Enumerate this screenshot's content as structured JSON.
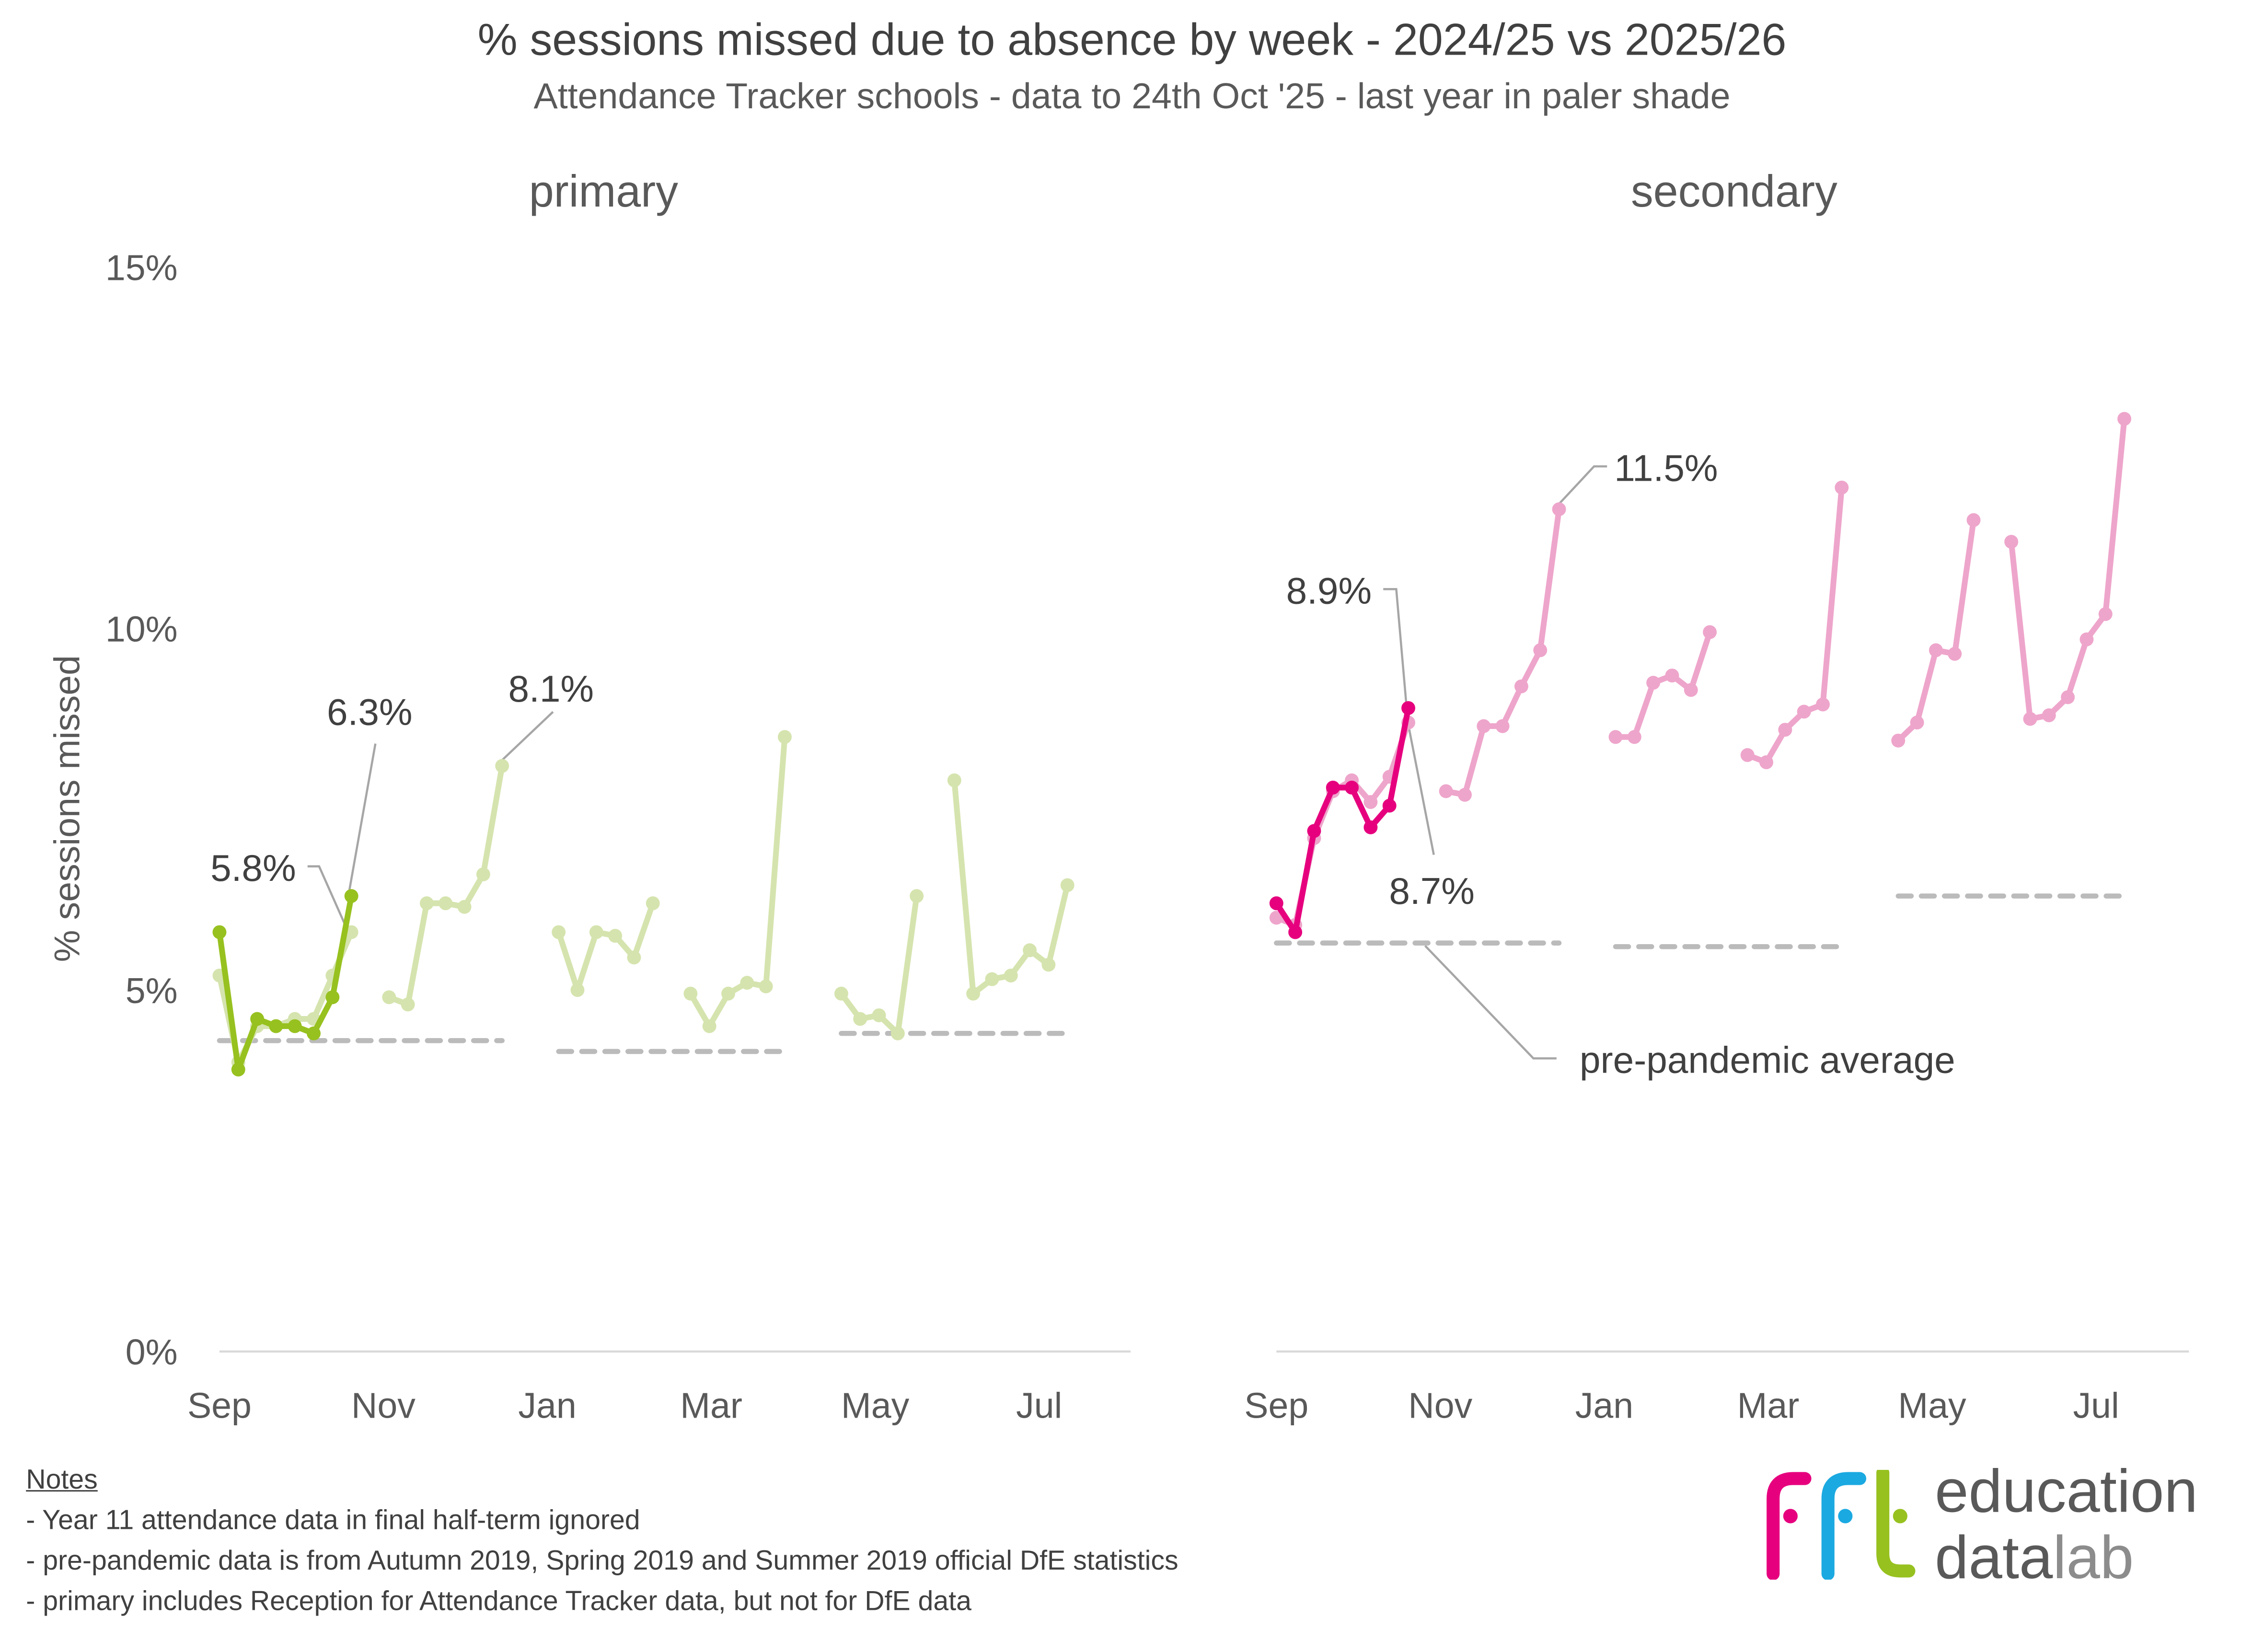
{
  "title": "% sessions missed due to absence by week - 2024/25 vs 2025/26",
  "subtitle": "Attendance Tracker schools - data to 24th Oct '25 - last year in paler shade",
  "notes": {
    "heading": "Notes",
    "items": [
      "-  Year 11 attendance data in final half-term ignored",
      "-  pre-pandemic data is from Autumn 2019, Spring 2019 and Summer 2019 official DfE statistics",
      "-  primary includes Reception for Attendance Tracker data, but not for DfE data"
    ]
  },
  "logo": {
    "mark": "ffl",
    "line1": "education",
    "line2a": "data",
    "line2b": "lab"
  },
  "chart_data": [
    {
      "type": "line",
      "title": "primary",
      "ylabel": "% sessions missed",
      "ylim": [
        0,
        15
      ],
      "yticks": [
        0,
        5,
        10,
        15
      ],
      "ytick_labels": [
        "0%",
        "5%",
        "10%",
        "15%"
      ],
      "x_unit": "weeks since start of September",
      "xtick_positions": [
        0,
        8.7,
        17.4,
        26.1,
        34.8,
        43.5
      ],
      "xtick_labels": [
        "Sep",
        "Nov",
        "Jan",
        "Mar",
        "May",
        "Jul"
      ],
      "colors": {
        "current": "#97C11F",
        "last": "#D5E4AE",
        "baseline": "#BBBBBB"
      },
      "series": [
        {
          "name": "2025/26",
          "segments": [
            {
              "x": [
                0,
                1,
                2,
                3,
                4,
                5,
                6,
                7
              ],
              "y": [
                5.8,
                3.9,
                4.6,
                4.5,
                4.5,
                4.4,
                4.9,
                6.3
              ]
            }
          ]
        },
        {
          "name": "2024/25",
          "segments": [
            {
              "x": [
                0,
                1,
                2,
                3,
                4,
                5,
                6,
                7
              ],
              "y": [
                5.2,
                4.0,
                4.5,
                4.5,
                4.6,
                4.6,
                5.2,
                5.8
              ]
            },
            {
              "x": [
                9,
                10,
                11,
                12,
                13,
                14,
                15
              ],
              "y": [
                4.9,
                4.8,
                6.2,
                6.2,
                6.15,
                6.6,
                8.1
              ]
            },
            {
              "x": [
                18,
                19,
                20,
                21,
                22,
                23
              ],
              "y": [
                5.8,
                5.0,
                5.8,
                5.75,
                5.45,
                6.2
              ]
            },
            {
              "x": [
                25,
                26,
                27,
                28,
                29,
                30
              ],
              "y": [
                4.95,
                4.5,
                4.95,
                5.1,
                5.05,
                8.5
              ]
            },
            {
              "x": [
                33,
                34,
                35,
                36,
                37
              ],
              "y": [
                4.95,
                4.6,
                4.65,
                4.4,
                6.3
              ]
            },
            {
              "x": [
                39,
                40,
                41,
                42,
                43,
                44,
                45
              ],
              "y": [
                7.9,
                4.95,
                5.15,
                5.2,
                5.55,
                5.35,
                6.45
              ]
            }
          ]
        },
        {
          "name": "pre-pandemic average",
          "segments": [
            {
              "x": [
                0,
                15
              ],
              "y": [
                4.3,
                4.3
              ]
            },
            {
              "x": [
                18,
                30
              ],
              "y": [
                4.15,
                4.15
              ]
            },
            {
              "x": [
                33,
                45
              ],
              "y": [
                4.4,
                4.4
              ]
            }
          ]
        }
      ],
      "annotations": [
        "5.8%",
        "6.3%",
        "8.1%"
      ]
    },
    {
      "type": "line",
      "title": "secondary",
      "ylim": [
        0,
        15
      ],
      "x_unit": "weeks since start of September",
      "xtick_positions": [
        0,
        8.7,
        17.4,
        26.1,
        34.8,
        43.5
      ],
      "xtick_labels": [
        "Sep",
        "Nov",
        "Jan",
        "Mar",
        "May",
        "Jul"
      ],
      "colors": {
        "current": "#E6007E",
        "last": "#EEA5CB",
        "baseline": "#BBBBBB"
      },
      "series": [
        {
          "name": "2025/26",
          "segments": [
            {
              "x": [
                0,
                1,
                2,
                3,
                4,
                5,
                6,
                7
              ],
              "y": [
                6.2,
                5.8,
                7.2,
                7.8,
                7.8,
                7.25,
                7.55,
                8.9
              ]
            }
          ]
        },
        {
          "name": "2024/25",
          "segments": [
            {
              "x": [
                0,
                1,
                2,
                3,
                4,
                5,
                6,
                7
              ],
              "y": [
                6.0,
                5.9,
                7.1,
                7.75,
                7.9,
                7.6,
                7.95,
                8.7
              ]
            },
            {
              "x": [
                9,
                10,
                11,
                12,
                13,
                14,
                15
              ],
              "y": [
                7.75,
                7.7,
                8.65,
                8.65,
                9.2,
                9.7,
                11.65
              ]
            },
            {
              "x": [
                18,
                19,
                20,
                21,
                22,
                23
              ],
              "y": [
                8.5,
                8.5,
                9.25,
                9.35,
                9.15,
                9.95
              ]
            },
            {
              "x": [
                25,
                26,
                27,
                28,
                29,
                30
              ],
              "y": [
                8.25,
                8.15,
                8.6,
                8.85,
                8.95,
                11.95
              ]
            },
            {
              "x": [
                33,
                34,
                35,
                36,
                37
              ],
              "y": [
                8.45,
                8.7,
                9.7,
                9.65,
                11.5
              ]
            },
            {
              "x": [
                39,
                40,
                41,
                42,
                43,
                44,
                45
              ],
              "y": [
                11.2,
                8.75,
                8.8,
                9.05,
                9.85,
                10.2,
                12.9
              ]
            }
          ]
        },
        {
          "name": "pre-pandemic average",
          "segments": [
            {
              "x": [
                0,
                15
              ],
              "y": [
                5.65,
                5.65
              ]
            },
            {
              "x": [
                18,
                30
              ],
              "y": [
                5.6,
                5.6
              ]
            },
            {
              "x": [
                33,
                45
              ],
              "y": [
                6.3,
                6.3
              ]
            }
          ]
        }
      ],
      "annotations": [
        "8.9%",
        "8.7%",
        "11.5%",
        "pre-pandemic average"
      ]
    }
  ]
}
